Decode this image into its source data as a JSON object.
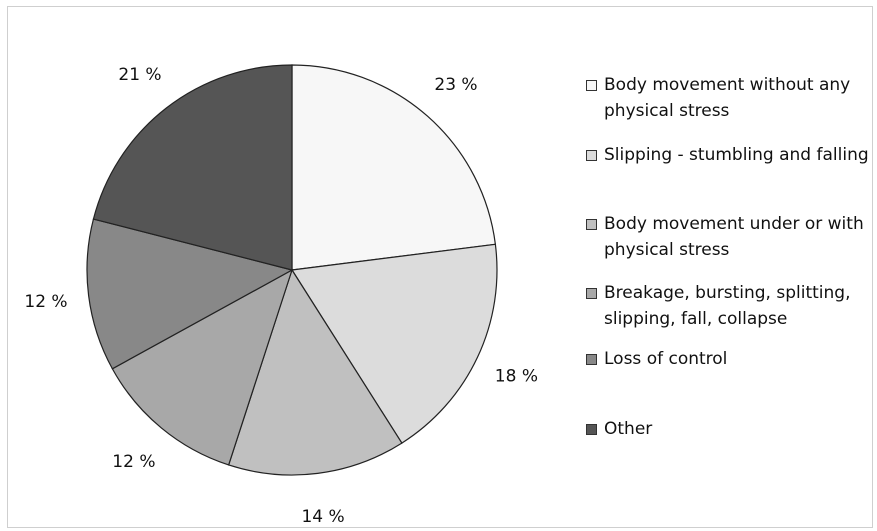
{
  "chart_data": {
    "type": "pie",
    "title": "",
    "slices": [
      {
        "label": "Body movement without any physical stress",
        "value": 23,
        "display": "23 %",
        "color": "#f7f7f7"
      },
      {
        "label": "Slipping - stumbling and falling",
        "value": 18,
        "display": "18 %",
        "color": "#dcdcdc"
      },
      {
        "label": "Body movement under or with physical stress",
        "value": 14,
        "display": "14 %",
        "color": "#c0c0c0"
      },
      {
        "label": "Breakage, bursting, splitting, slipping, fall, collapse",
        "value": 12,
        "display": "12 %",
        "color": "#a8a8a8"
      },
      {
        "label": "Loss of control",
        "value": 12,
        "display": "12 %",
        "color": "#888888"
      },
      {
        "label": "Other",
        "value": 21,
        "display": "21 %",
        "color": "#555555"
      }
    ],
    "start_angle_deg": 0,
    "direction": "clockwise",
    "legend_position": "right",
    "legend": [
      "Body movement without any physical stress",
      "Slipping - stumbling and falling",
      "Body movement under or with physical stress",
      "Breakage, bursting, splitting, slipping, fall, collapse",
      "Loss of control",
      "Other"
    ]
  }
}
